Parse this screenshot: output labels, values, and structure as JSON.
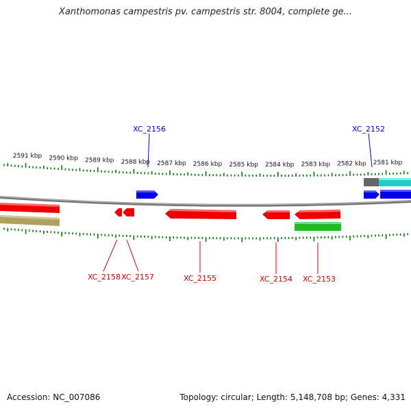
{
  "title": "Xanthomonas campestris pv. campestris str. 8004, complete ge...",
  "footer": {
    "accession": "Accession: NC_007086",
    "summary": "Topology: circular; Length: 5,148,708 bp; Genes: 4,331"
  },
  "ruler": {
    "tick_labels": [
      "2591 kbp",
      "2590 kbp",
      "2589 kbp",
      "2588 kbp",
      "2587 kbp",
      "2586 kbp",
      "2585 kbp",
      "2584 kbp",
      "2583 kbp",
      "2582 kbp",
      "2581 kbp"
    ]
  },
  "genes": [
    {
      "label": "XC_2156",
      "strand": "plus",
      "color": "#0000ee"
    },
    {
      "label": "XC_2152",
      "strand": "plus",
      "color": "#0000ee"
    },
    {
      "label": "XC_2158",
      "strand": "minus",
      "color": "#ee0000"
    },
    {
      "label": "XC_2157",
      "strand": "minus",
      "color": "#ee0000"
    },
    {
      "label": "XC_2155",
      "strand": "minus",
      "color": "#ee0000"
    },
    {
      "label": "XC_2154",
      "strand": "minus",
      "color": "#ee0000"
    },
    {
      "label": "XC_2153",
      "strand": "minus",
      "color": "#ee0000"
    }
  ],
  "colors": {
    "plus_gene": "#0000ee",
    "minus_gene": "#ee0000",
    "tick": "#007700",
    "backbone": "#777777",
    "rna_feature": "#22bb22",
    "other_feature_olive": "#b0a060",
    "other_feature_cyan": "#22cccc",
    "other_feature_gray": "#666666"
  }
}
